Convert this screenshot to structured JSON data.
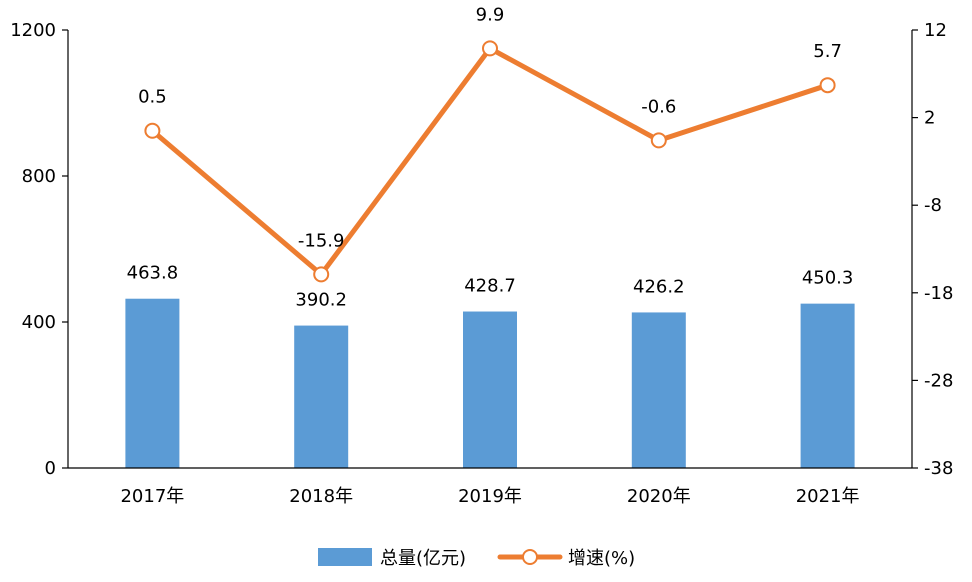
{
  "chart_data": {
    "type": "bar",
    "categories": [
      "2017年",
      "2018年",
      "2019年",
      "2020年",
      "2021年"
    ],
    "series": [
      {
        "name": "总量(亿元)",
        "type": "bar",
        "axis": "left",
        "color": "#5b9bd5",
        "values": [
          463.8,
          390.2,
          428.7,
          426.2,
          450.3
        ],
        "labels": [
          "463.8",
          "390.2",
          "428.7",
          "426.2",
          "450.3"
        ]
      },
      {
        "name": "增速(%)",
        "type": "line",
        "axis": "right",
        "color": "#ed7d31",
        "values": [
          0.5,
          -15.9,
          9.9,
          -0.6,
          5.7
        ],
        "labels": [
          "0.5",
          "-15.9",
          "9.9",
          "-0.6",
          "5.7"
        ]
      }
    ],
    "y_left": {
      "ylim": [
        0,
        1200
      ],
      "ticks": [
        0,
        400,
        800,
        1200
      ],
      "tick_labels": [
        "0",
        "400",
        "800",
        "1200"
      ]
    },
    "y_right": {
      "ylim": [
        -38,
        12
      ],
      "ticks": [
        -38,
        -28,
        -18,
        -8,
        2,
        12
      ],
      "tick_labels": [
        "-38",
        "-28",
        "-18",
        "-8",
        "2",
        "12"
      ]
    },
    "grid": false,
    "legend_position": "bottom",
    "xlabel": "",
    "ylabel": ""
  }
}
